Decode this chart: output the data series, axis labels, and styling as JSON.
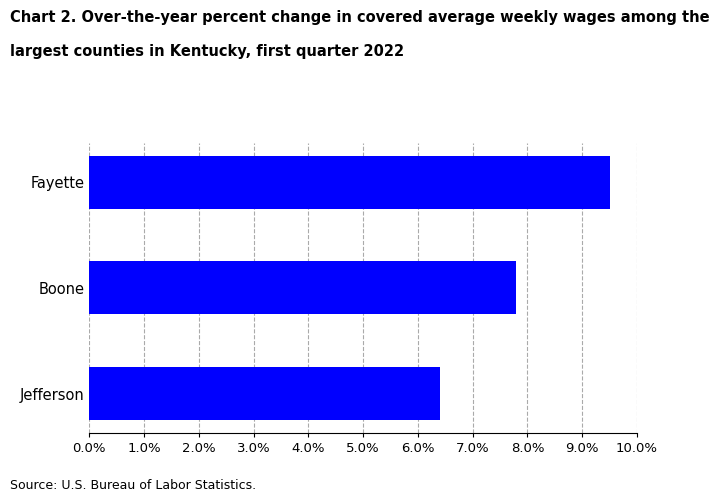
{
  "title_line1": "Chart 2. Over-the-year percent change in covered average weekly wages among the",
  "title_line2": "largest counties in Kentucky, first quarter 2022",
  "categories": [
    "Jefferson",
    "Boone",
    "Fayette"
  ],
  "values": [
    6.4,
    7.8,
    9.5
  ],
  "bar_color": "#0000ff",
  "xlim": [
    0,
    10.0
  ],
  "xticks": [
    0.0,
    1.0,
    2.0,
    3.0,
    4.0,
    5.0,
    6.0,
    7.0,
    8.0,
    9.0,
    10.0
  ],
  "source": "Source: U.S. Bureau of Labor Statistics.",
  "title_fontsize": 10.5,
  "tick_fontsize": 9.5,
  "source_fontsize": 9,
  "label_fontsize": 10.5,
  "grid_color": "#aaaaaa",
  "background_color": "#ffffff"
}
